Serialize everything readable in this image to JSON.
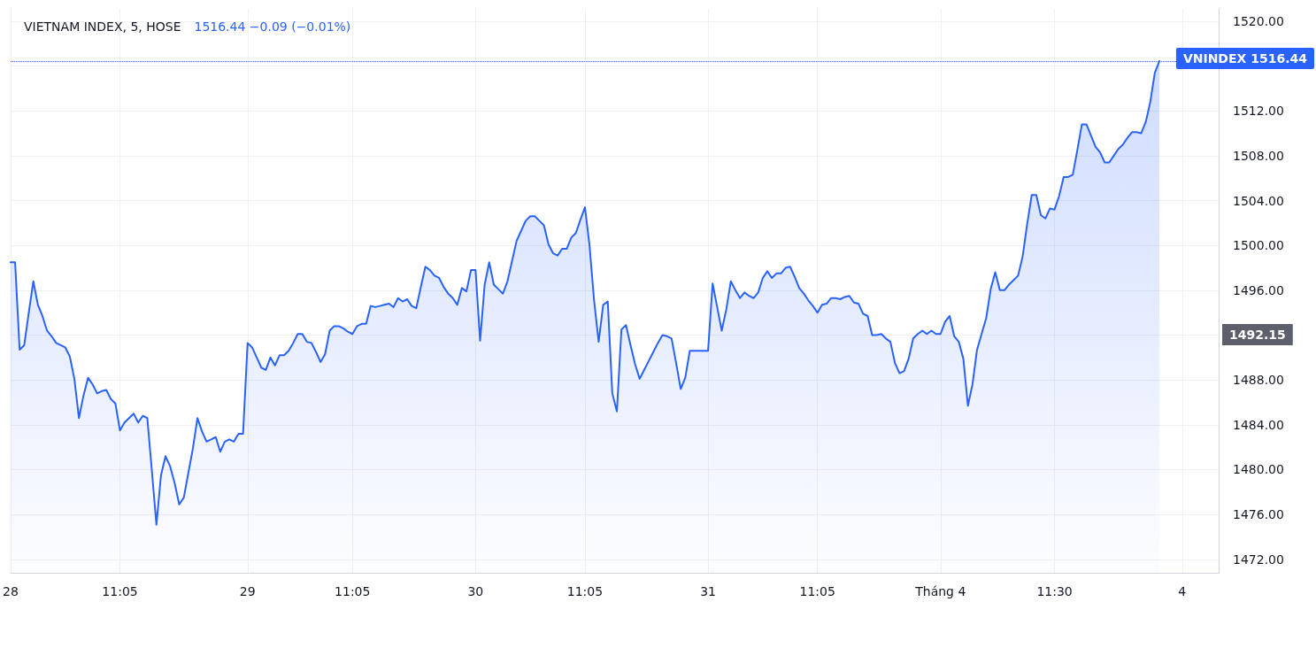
{
  "chart_data": {
    "type": "area",
    "title": "VIETNAM INDEX, 5, HOSE",
    "subtitle": "1516.44 −0.09 (−0.01%)",
    "categories": [
      "28",
      null,
      null,
      null,
      null,
      null,
      null,
      null,
      null,
      null,
      null,
      null,
      null,
      null,
      null,
      null,
      null,
      null,
      null,
      null,
      null,
      null,
      null,
      null,
      "11:05",
      null,
      null,
      null,
      null,
      null,
      null,
      null,
      null,
      null,
      null,
      null,
      null,
      null,
      null,
      null,
      null,
      null,
      null,
      null,
      null,
      null,
      null,
      null,
      null,
      null,
      null,
      null,
      "29",
      null,
      null,
      null,
      null,
      null,
      null,
      null,
      null,
      null,
      null,
      null,
      null,
      null,
      null,
      null,
      null,
      null,
      null,
      null,
      null,
      null,
      null,
      "11:05",
      null,
      null,
      null,
      null,
      null,
      null,
      null,
      null,
      null,
      null,
      null,
      null,
      null,
      null,
      null,
      null,
      null,
      null,
      null,
      null,
      null,
      null,
      null,
      null,
      null,
      null,
      "30",
      null,
      null,
      null,
      null,
      null,
      null,
      null,
      null,
      null,
      null,
      null,
      null,
      null,
      null,
      null,
      null,
      null,
      null,
      null,
      null,
      null,
      null,
      null,
      "11:05",
      null,
      null,
      null,
      null,
      null,
      null,
      null,
      null,
      null,
      null,
      null,
      null,
      null,
      null,
      null,
      null,
      null,
      null,
      null,
      null,
      null,
      null,
      null,
      null,
      null,
      null,
      "31",
      null,
      null,
      null,
      null,
      null,
      null,
      null,
      null,
      null,
      null,
      null,
      null,
      null,
      null,
      null,
      null,
      null,
      null,
      null,
      null,
      null,
      null,
      null,
      "11:05",
      null,
      null,
      null,
      null,
      null,
      null,
      null,
      null,
      null,
      null,
      null,
      null,
      null,
      null,
      null,
      null,
      null,
      null,
      null,
      null,
      null,
      null,
      null,
      null,
      null,
      null,
      "Tháng 4",
      null,
      null,
      null,
      null,
      null,
      null,
      null,
      null,
      null,
      null,
      null,
      null,
      null,
      null,
      null,
      null,
      null,
      null,
      null,
      null,
      null,
      null,
      null,
      null,
      "11:30",
      null,
      null,
      null,
      null,
      null,
      null,
      null,
      null,
      null,
      null,
      null,
      null,
      null,
      null,
      null,
      null,
      null,
      null,
      null,
      null,
      null,
      null,
      null,
      null,
      null,
      null,
      null,
      "4",
      null,
      null,
      null,
      null,
      null,
      null,
      null,
      null
    ],
    "series": [
      {
        "color": "#2962ff",
        "values": [
          1498.5,
          1498.5,
          1490.7,
          1491.1,
          1494.0,
          1496.8,
          1494.7,
          1493.7,
          1492.4,
          1491.9,
          1491.3,
          1491.1,
          1490.9,
          1490.1,
          1488.1,
          1484.6,
          1486.6,
          1488.2,
          1487.6,
          1486.8,
          1487.0,
          1487.1,
          1486.3,
          1485.9,
          1483.5,
          1484.2,
          1484.6,
          1485.0,
          1484.2,
          1484.8,
          1484.6,
          1479.9,
          1475.1,
          1479.5,
          1481.2,
          1480.3,
          1478.8,
          1476.9,
          1477.5,
          1479.7,
          1481.9,
          1484.6,
          1483.4,
          1482.5,
          1482.7,
          1482.9,
          1481.6,
          1482.5,
          1482.7,
          1482.5,
          1483.2,
          1483.2,
          1491.3,
          1490.9,
          1490.0,
          1489.1,
          1488.9,
          1490.0,
          1489.3,
          1490.2,
          1490.2,
          1490.6,
          1491.3,
          1492.1,
          1492.1,
          1491.4,
          1491.3,
          1490.5,
          1489.6,
          1490.3,
          1492.4,
          1492.8,
          1492.8,
          1492.6,
          1492.3,
          1492.1,
          1492.8,
          1493.0,
          1493.0,
          1494.6,
          1494.5,
          1494.6,
          1494.7,
          1494.8,
          1494.5,
          1495.3,
          1495.0,
          1495.2,
          1494.6,
          1494.4,
          1496.3,
          1498.1,
          1497.8,
          1497.3,
          1497.1,
          1496.3,
          1495.7,
          1495.3,
          1494.7,
          1496.2,
          1495.9,
          1497.8,
          1497.8,
          1491.5,
          1496.5,
          1498.5,
          1496.5,
          1496.1,
          1495.7,
          1496.8,
          1498.6,
          1500.4,
          1501.3,
          1502.2,
          1502.6,
          1502.6,
          1502.2,
          1501.8,
          1500.1,
          1499.3,
          1499.1,
          1499.7,
          1499.7,
          1500.7,
          1501.1,
          1502.3,
          1503.4,
          1500.0,
          1495.1,
          1491.4,
          1494.7,
          1495.0,
          1486.8,
          1485.2,
          1492.5,
          1492.9,
          1491.1,
          1489.4,
          1488.1,
          1488.9,
          1489.7,
          1490.5,
          1491.3,
          1492.0,
          1491.9,
          1491.7,
          1489.5,
          1487.2,
          1488.2,
          1490.6,
          1490.6,
          1490.6,
          1490.6,
          1490.6,
          1496.6,
          1494.5,
          1492.4,
          1494.3,
          1496.8,
          1496.0,
          1495.3,
          1495.8,
          1495.5,
          1495.3,
          1495.8,
          1497.1,
          1497.7,
          1497.1,
          1497.5,
          1497.5,
          1498.0,
          1498.1,
          1497.2,
          1496.2,
          1495.7,
          1495.1,
          1494.6,
          1494.0,
          1494.7,
          1494.8,
          1495.3,
          1495.3,
          1495.2,
          1495.4,
          1495.5,
          1494.9,
          1494.8,
          1493.9,
          1493.7,
          1492.0,
          1492.0,
          1492.1,
          1491.7,
          1491.4,
          1489.5,
          1488.6,
          1488.8,
          1489.9,
          1491.7,
          1492.1,
          1492.4,
          1492.1,
          1492.4,
          1492.1,
          1492.1,
          1493.2,
          1493.7,
          1491.9,
          1491.4,
          1489.9,
          1485.7,
          1487.6,
          1490.7,
          1492.1,
          1493.5,
          1496.1,
          1497.6,
          1496.0,
          1496.0,
          1496.5,
          1496.9,
          1497.3,
          1499.0,
          1501.9,
          1504.5,
          1504.5,
          1502.7,
          1502.4,
          1503.3,
          1503.2,
          1504.4,
          1506.1,
          1506.1,
          1506.3,
          1508.5,
          1510.8,
          1510.8,
          1509.8,
          1508.8,
          1508.3,
          1507.4,
          1507.4,
          1508.0,
          1508.6,
          1509.0,
          1509.6,
          1510.1,
          1510.1,
          1510.0,
          1511.0,
          1512.8,
          1515.4,
          1516.44,
          null,
          null,
          null,
          null,
          null,
          null,
          null,
          null,
          null,
          null,
          null,
          null,
          null
        ]
      }
    ],
    "ylim": [
      1470.8,
      1521.1
    ],
    "yticks": [
      {
        "value": 1472,
        "label": "1472.00"
      },
      {
        "value": 1476,
        "label": "1476.00"
      },
      {
        "value": 1480,
        "label": "1480.00"
      },
      {
        "value": 1484,
        "label": "1484.00"
      },
      {
        "value": 1488,
        "label": "1488.00"
      },
      {
        "value": 1492,
        "label": null
      },
      {
        "value": 1496,
        "label": "1496.00"
      },
      {
        "value": 1500,
        "label": "1500.00"
      },
      {
        "value": 1504,
        "label": "1504.00"
      },
      {
        "value": 1508,
        "label": "1508.00"
      },
      {
        "value": 1512,
        "label": "1512.00"
      },
      {
        "value": 1516,
        "label": null
      },
      {
        "value": 1520,
        "label": "1520.00"
      }
    ],
    "ref_lines": [
      {
        "axis": "y",
        "value": 1516.44,
        "label": "VNINDEX 1516.44",
        "color": "#2962ff",
        "line_style": "dotted"
      }
    ],
    "annotations": [
      "1492.15"
    ],
    "grid": true,
    "marker": "none",
    "line_style": "solid"
  }
}
